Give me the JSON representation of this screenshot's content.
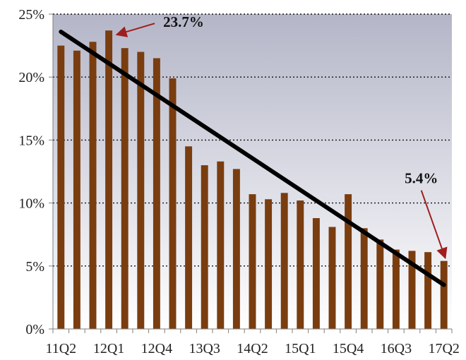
{
  "chart_data": {
    "type": "bar",
    "categories": [
      "11Q2",
      "11Q3",
      "11Q4",
      "12Q1",
      "12Q2",
      "12Q3",
      "12Q4",
      "13Q1",
      "13Q2",
      "13Q3",
      "13Q4",
      "14Q1",
      "14Q2",
      "14Q3",
      "14Q4",
      "15Q1",
      "15Q2",
      "15Q3",
      "15Q4",
      "16Q1",
      "16Q2",
      "16Q3",
      "16Q4",
      "17Q1",
      "17Q2"
    ],
    "x_tick_labels": [
      "11Q2",
      "12Q1",
      "12Q4",
      "13Q3",
      "14Q2",
      "15Q1",
      "15Q4",
      "16Q3",
      "17Q2"
    ],
    "series": [
      {
        "values": [
          22.5,
          22.1,
          22.8,
          23.7,
          22.3,
          22.0,
          21.5,
          19.9,
          14.5,
          13.0,
          13.3,
          12.7,
          10.7,
          10.3,
          10.8,
          10.2,
          8.8,
          8.1,
          10.7,
          8.0,
          7.1,
          6.3,
          6.2,
          6.1,
          5.4
        ],
        "color": "#7a3d0f"
      }
    ],
    "y_tick_labels": [
      "0%",
      "5%",
      "10%",
      "15%",
      "20%",
      "25%"
    ],
    "ylim": [
      0,
      25
    ],
    "y_unit": "%",
    "grid": true,
    "trendline": {
      "start_value": 23.6,
      "end_value": 3.5,
      "color": "#000000"
    },
    "annotations": [
      {
        "text": "23.7%",
        "category": "12Q1",
        "value": 23.7,
        "arrow_color": "#a01e1e"
      },
      {
        "text": "5.4%",
        "category": "17Q2",
        "value": 5.4,
        "arrow_color": "#a01e1e"
      }
    ],
    "background_gradient": [
      "#b4b6c8",
      "#ffffff"
    ]
  }
}
